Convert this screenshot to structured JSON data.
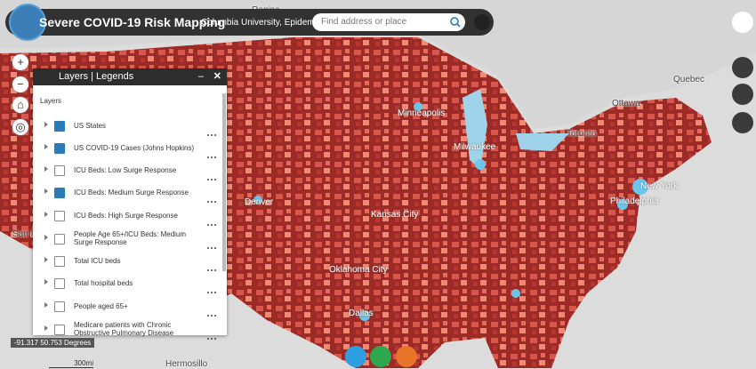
{
  "header": {
    "title": "Severe COVID-19 Risk Mapping",
    "subtitle": "Columbia University, Epidemiology",
    "search_placeholder": "Find address or place"
  },
  "panel": {
    "title": "Layers | Legends",
    "section": "Layers",
    "layers": [
      {
        "label": "US States",
        "checked": true
      },
      {
        "label": "US COVID-19 Cases (Johns Hopkins)",
        "checked": true
      },
      {
        "label": "ICU Beds: Low Surge Response",
        "checked": false
      },
      {
        "label": "ICU Beds: Medium Surge Response",
        "checked": true
      },
      {
        "label": "ICU Beds: High Surge Response",
        "checked": false
      },
      {
        "label": "People Age 65+/ICU Beds: Medium Surge Response",
        "checked": false
      },
      {
        "label": "Total ICU beds",
        "checked": false
      },
      {
        "label": "Total hospital beds",
        "checked": false
      },
      {
        "label": "People aged 65+",
        "checked": false
      },
      {
        "label": "Medicare patients with Chronic Obstructive Pulmonary Disease",
        "checked": false
      }
    ]
  },
  "map_labels": [
    "Regina",
    "Ottawa",
    "Quebec",
    "Toronto",
    "Minneapolis",
    "Milwaukee",
    "Denver",
    "Kansas City",
    "Philadelphia",
    "New York",
    "Dallas",
    "Oklahoma City",
    "Hermosillo",
    "San Fr"
  ],
  "status": {
    "coordinates": "-91.317 50.753 Degrees",
    "scale": "300mi"
  }
}
